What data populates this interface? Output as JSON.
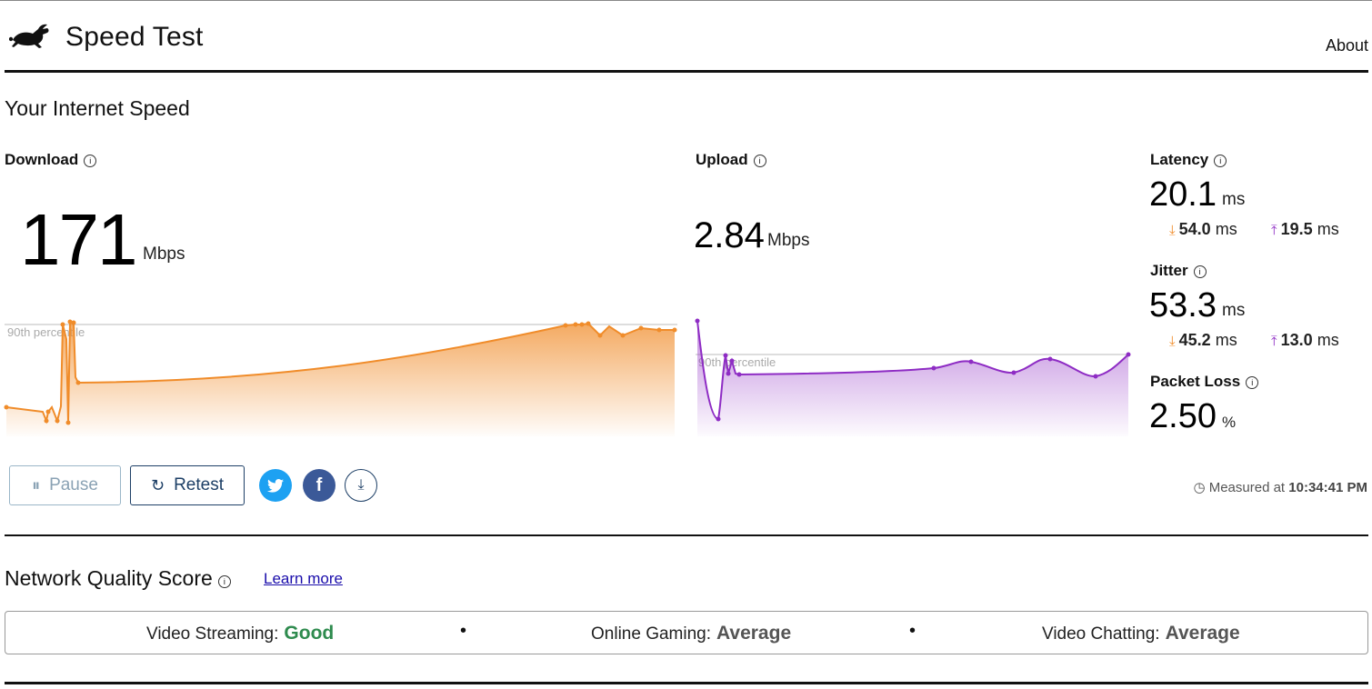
{
  "app": {
    "title": "Speed Test",
    "nav_about": "About"
  },
  "speed": {
    "heading": "Your Internet Speed",
    "download": {
      "label": "Download",
      "value": "171",
      "unit": "Mbps"
    },
    "upload": {
      "label": "Upload",
      "value": "2.84",
      "unit": "Mbps"
    },
    "percentile_label": "90th percentile",
    "latency": {
      "label": "Latency",
      "value": "20.1",
      "unit": "ms",
      "down_value": "54.0",
      "down_unit": "ms",
      "up_value": "19.5",
      "up_unit": "ms"
    },
    "jitter": {
      "label": "Jitter",
      "value": "53.3",
      "unit": "ms",
      "down_value": "45.2",
      "down_unit": "ms",
      "up_value": "13.0",
      "up_unit": "ms"
    },
    "packet_loss": {
      "label": "Packet Loss",
      "value": "2.50",
      "unit": "%"
    }
  },
  "controls": {
    "pause_label": "Pause",
    "retest_label": "Retest",
    "measured_prefix": "Measured at",
    "measured_time": "10:34:41 PM"
  },
  "quality": {
    "heading": "Network Quality Score",
    "learn_more": "Learn more",
    "items": [
      {
        "label": "Video Streaming:",
        "value": "Good"
      },
      {
        "label": "Online Gaming:",
        "value": "Average"
      },
      {
        "label": "Video Chatting:",
        "value": "Average"
      }
    ]
  },
  "colors": {
    "download": "#f08c2a",
    "upload": "#8e2cc4",
    "good": "#2e8b4e"
  },
  "icons": [
    "rabbit-logo-icon",
    "info-icon",
    "download-arrow-icon",
    "upload-arrow-icon",
    "pause-icon",
    "retest-icon",
    "twitter-icon",
    "facebook-icon",
    "download-results-icon",
    "clock-icon"
  ]
}
